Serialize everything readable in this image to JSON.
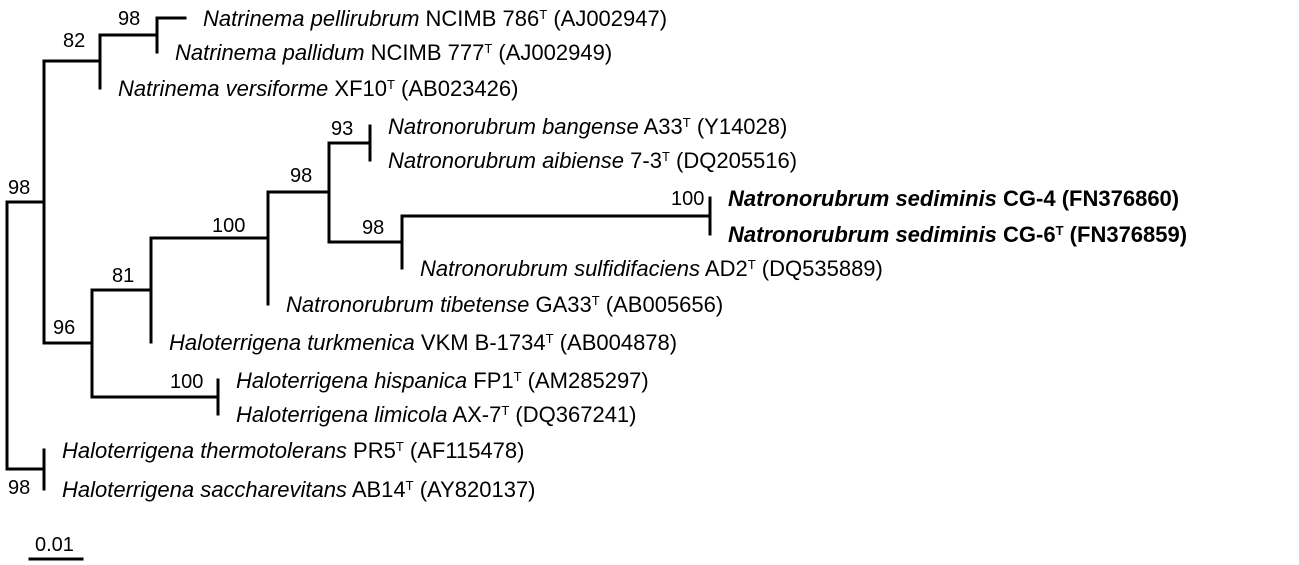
{
  "colors": {
    "ink": "#000000",
    "background": "#ffffff"
  },
  "taxa": [
    {
      "id": "t1",
      "genus": "Natrinema",
      "species": "pellirubrum",
      "strain": "NCIMB 786",
      "type": true,
      "acc": "(AJ002947)",
      "bold": false
    },
    {
      "id": "t2",
      "genus": "Natrinema",
      "species": "pallidum",
      "strain": "NCIMB 777",
      "type": true,
      "acc": "(AJ002949)",
      "bold": false
    },
    {
      "id": "t3",
      "genus": "Natrinema",
      "species": "versiforme",
      "strain": "XF10",
      "type": true,
      "acc": "(AB023426)",
      "bold": false
    },
    {
      "id": "t4",
      "genus": "Natronorubrum",
      "species": "bangense",
      "strain": "A33",
      "type": true,
      "acc": "(Y14028)",
      "bold": false
    },
    {
      "id": "t5",
      "genus": "Natronorubrum",
      "species": "aibiense",
      "strain": "7-3",
      "type": true,
      "acc": "(DQ205516)",
      "bold": false
    },
    {
      "id": "t6",
      "genus": "Natronorubrum",
      "species": "sediminis",
      "strain": "CG-4",
      "type": false,
      "acc": "(FN376860)",
      "bold": true
    },
    {
      "id": "t7",
      "genus": "Natronorubrum",
      "species": "sediminis",
      "strain": "CG-6",
      "type": true,
      "acc": "(FN376859)",
      "bold": true
    },
    {
      "id": "t8",
      "genus": "Natronorubrum",
      "species": "sulfidifaciens",
      "strain": "AD2",
      "type": true,
      "acc": "(DQ535889)",
      "bold": false
    },
    {
      "id": "t9",
      "genus": "Natronorubrum",
      "species": "tibetense",
      "strain": "GA33",
      "type": true,
      "acc": "(AB005656)",
      "bold": false
    },
    {
      "id": "t10",
      "genus": "Haloterrigena",
      "species": "turkmenica",
      "strain": "VKM B-1734",
      "type": true,
      "acc": "(AB004878)",
      "bold": false
    },
    {
      "id": "t11",
      "genus": "Haloterrigena",
      "species": "hispanica",
      "strain": "FP1",
      "type": true,
      "acc": "(AM285297)",
      "bold": false
    },
    {
      "id": "t12",
      "genus": "Haloterrigena",
      "species": "limicola",
      "strain": "AX-7",
      "type": true,
      "acc": "(DQ367241)",
      "bold": false
    },
    {
      "id": "t13",
      "genus": "Haloterrigena",
      "species": "thermotolerans",
      "strain": "PR5",
      "type": true,
      "acc": "(AF115478)",
      "bold": false
    },
    {
      "id": "t14",
      "genus": "Haloterrigena",
      "species": "saccharevitans",
      "strain": "AB14",
      "type": true,
      "acc": "(AY820137)",
      "bold": false
    }
  ],
  "type_marker": "T",
  "bootstrap": {
    "n_pell_pall": "98",
    "n_natrinema": "82",
    "n_bang_aib": "93",
    "n_sediminis": "100",
    "n_sed_sulf": "98",
    "n_nrb_core": "98",
    "n_nrb": "100",
    "n_turk": "81",
    "n_hisp_lim": "100",
    "n_ingroup": "96",
    "n_top": "98",
    "n_thermo_sacch": "98"
  },
  "scale_bar": {
    "label": "0.01"
  }
}
